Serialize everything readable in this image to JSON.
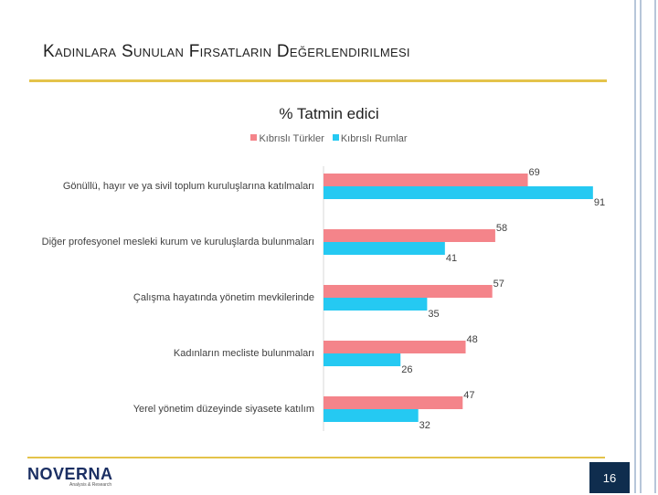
{
  "slide": {
    "title": "Kadınlara Sunulan Fırsatların Değerlendirilmesi",
    "page_number": "16",
    "logo_text": "NOVERNA",
    "logo_subtext": "Analysis & Research"
  },
  "colors": {
    "turkish": "#f4848a",
    "greek": "#25c9f2",
    "accent_line": "#e4c34a",
    "page_box": "#0f2d4e"
  },
  "chart_data": {
    "type": "bar",
    "orientation": "horizontal",
    "title": "% Tatmin edici",
    "categories": [
      "Gönüllü, hayır ve ya sivil toplum kuruluşlarına katılmaları",
      "Diğer profesyonel mesleki kurum ve kuruluşlarda bulunmaları",
      "Çalışma hayatında yönetim mevkilerinde",
      "Kadınların mecliste bulunmaları",
      "Yerel yönetim düzeyinde siyasete katılım"
    ],
    "series": [
      {
        "name": "Kıbrıslı Türkler",
        "values": [
          69,
          58,
          57,
          48,
          47
        ]
      },
      {
        "name": "Kıbrıslı Rumlar",
        "values": [
          91,
          41,
          35,
          26,
          32
        ]
      }
    ],
    "xlim": [
      0,
      100
    ],
    "legend_position": "top",
    "grid": false
  }
}
